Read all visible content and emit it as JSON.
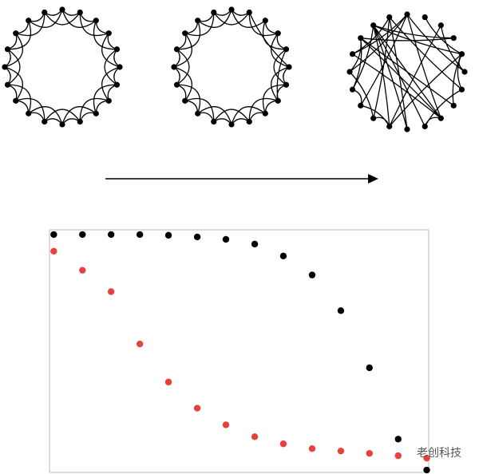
{
  "chart_data": {
    "type": "scatter",
    "x": [
      0.0001,
      0.000203,
      0.000412,
      0.000838,
      0.0017,
      0.00346,
      0.00702,
      0.0143,
      0.029,
      0.059,
      0.12,
      0.243,
      0.494,
      1
    ],
    "series": [
      {
        "color": "#000000",
        "values": [
          1.0,
          1.0,
          1.0,
          1.0,
          0.997,
          0.99,
          0.98,
          0.96,
          0.91,
          0.83,
          0.68,
          0.44,
          0.14,
          0.01
        ]
      },
      {
        "color": "#e8403a",
        "values": [
          0.93,
          0.85,
          0.76,
          0.54,
          0.38,
          0.27,
          0.2,
          0.15,
          0.12,
          0.1,
          0.09,
          0.08,
          0.07,
          0.06
        ]
      }
    ],
    "xlim": [
      9e-05,
      1.05
    ],
    "ylim": [
      0,
      1.02
    ],
    "log_x": true,
    "grid": false
  },
  "watermark": "老创科技"
}
